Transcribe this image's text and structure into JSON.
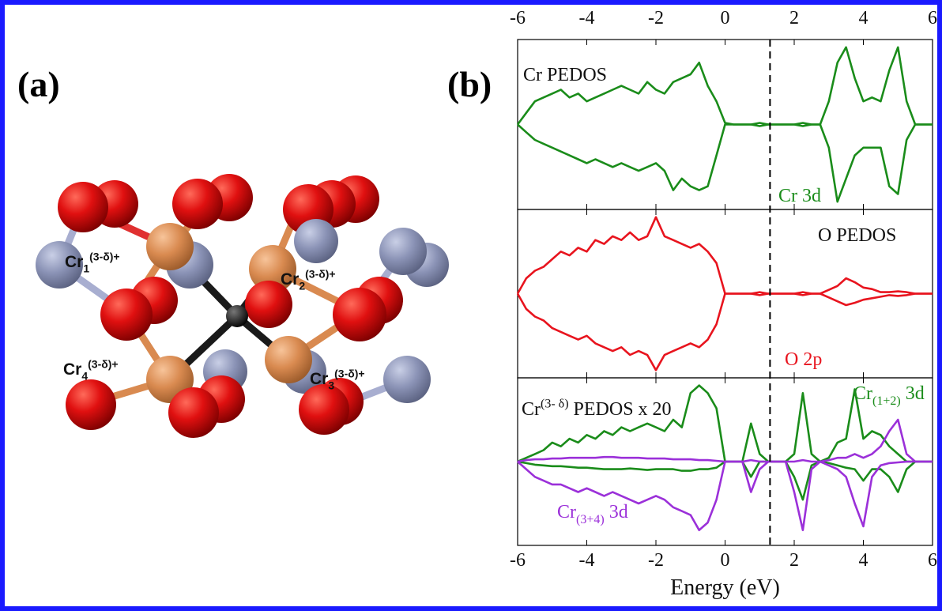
{
  "panel_a": {
    "label": "(a)",
    "atom_labels": [
      {
        "parts": [
          {
            "text": "Cr"
          },
          {
            "text": "1",
            "shift": "sub"
          },
          {
            "text": "(3-δ)+",
            "shift": "sup"
          }
        ]
      },
      {
        "parts": [
          {
            "text": "Cr"
          },
          {
            "text": "2",
            "shift": "sub"
          },
          {
            "text": "(3-δ)+",
            "shift": "sup"
          }
        ]
      },
      {
        "parts": [
          {
            "text": "Cr"
          },
          {
            "text": "4",
            "shift": "sub"
          },
          {
            "text": "(3-δ)+",
            "shift": "sup"
          }
        ]
      },
      {
        "parts": [
          {
            "text": "Cr"
          },
          {
            "text": "3",
            "shift": "sub"
          },
          {
            "text": "(3-δ)+",
            "shift": "sup"
          }
        ]
      }
    ]
  },
  "panel_b": {
    "label": "(b)"
  },
  "chart_data": [
    {
      "type": "line",
      "xlim": [
        -6,
        6
      ],
      "ylim": [
        -1.1,
        1.1
      ],
      "xticks": [
        -6,
        -4,
        -2,
        0,
        2,
        4,
        6
      ],
      "xticks_position": "top",
      "vline": 1.3,
      "annotations": [
        {
          "color": "#111111",
          "parts": [
            {
              "text": "Cr PEDOS"
            }
          ]
        },
        {
          "color": "#1a8c1a",
          "parts": [
            {
              "text": "Cr 3d"
            }
          ]
        }
      ],
      "x": [
        -6,
        -5.75,
        -5.5,
        -5.25,
        -5,
        -4.75,
        -4.5,
        -4.25,
        -4,
        -3.75,
        -3.5,
        -3.25,
        -3,
        -2.75,
        -2.5,
        -2.25,
        -2,
        -1.75,
        -1.5,
        -1.25,
        -1,
        -0.75,
        -0.5,
        -0.25,
        0,
        0.25,
        0.5,
        0.75,
        1,
        1.25,
        1.5,
        1.75,
        2,
        2.25,
        2.5,
        2.75,
        3,
        3.25,
        3.5,
        3.75,
        4,
        4.25,
        4.5,
        4.75,
        5,
        5.25,
        5.5,
        5.75,
        6
      ],
      "series": [
        {
          "color": "#1a8c1a",
          "values": [
            0,
            0.15,
            0.3,
            0.35,
            0.4,
            0.45,
            0.35,
            0.4,
            0.3,
            0.35,
            0.4,
            0.45,
            0.5,
            0.45,
            0.4,
            0.55,
            0.45,
            0.4,
            0.55,
            0.6,
            0.65,
            0.8,
            0.5,
            0.3,
            0.02,
            0,
            0,
            0,
            0.02,
            0,
            0,
            0,
            0,
            0.02,
            0,
            0,
            0.3,
            0.8,
            1.0,
            0.6,
            0.3,
            0.35,
            0.3,
            0.7,
            1.0,
            0.3,
            0,
            0,
            0
          ]
        },
        {
          "color": "#1a8c1a",
          "values": [
            0,
            -0.1,
            -0.2,
            -0.25,
            -0.3,
            -0.35,
            -0.4,
            -0.45,
            -0.5,
            -0.45,
            -0.5,
            -0.55,
            -0.5,
            -0.55,
            -0.6,
            -0.55,
            -0.5,
            -0.6,
            -0.85,
            -0.7,
            -0.8,
            -0.85,
            -0.8,
            -0.4,
            0,
            0,
            0,
            0,
            -0.02,
            0,
            0,
            0,
            0,
            -0.02,
            0,
            0,
            -0.3,
            -1.0,
            -0.7,
            -0.4,
            -0.3,
            -0.3,
            -0.3,
            -0.8,
            -0.9,
            -0.2,
            0,
            0,
            0
          ]
        }
      ]
    },
    {
      "type": "line",
      "xlim": [
        -6,
        6
      ],
      "ylim": [
        -1.1,
        1.1
      ],
      "annotations": [
        {
          "color": "#111111",
          "parts": [
            {
              "text": "O PEDOS"
            }
          ]
        },
        {
          "color": "#e8141e",
          "parts": [
            {
              "text": "O 2p"
            }
          ]
        }
      ],
      "x": [
        -6,
        -5.75,
        -5.5,
        -5.25,
        -5,
        -4.75,
        -4.5,
        -4.25,
        -4,
        -3.75,
        -3.5,
        -3.25,
        -3,
        -2.75,
        -2.5,
        -2.25,
        -2,
        -1.75,
        -1.5,
        -1.25,
        -1,
        -0.75,
        -0.5,
        -0.25,
        0,
        0.25,
        0.5,
        0.75,
        1,
        1.25,
        1.5,
        1.75,
        2,
        2.25,
        2.5,
        2.75,
        3,
        3.25,
        3.5,
        3.75,
        4,
        4.25,
        4.5,
        4.75,
        5,
        5.25,
        5.5,
        5.75,
        6
      ],
      "series": [
        {
          "color": "#e8141e",
          "values": [
            0,
            0.2,
            0.3,
            0.35,
            0.45,
            0.55,
            0.5,
            0.6,
            0.55,
            0.7,
            0.65,
            0.75,
            0.7,
            0.8,
            0.7,
            0.75,
            1.0,
            0.75,
            0.7,
            0.65,
            0.6,
            0.65,
            0.55,
            0.4,
            0,
            0,
            0,
            0,
            0.02,
            0,
            0,
            0,
            0,
            0.02,
            0,
            0,
            0.05,
            0.1,
            0.2,
            0.15,
            0.08,
            0.06,
            0.02,
            0.02,
            0.03,
            0.02,
            0,
            0,
            0
          ]
        },
        {
          "color": "#e8141e",
          "values": [
            0,
            -0.2,
            -0.3,
            -0.35,
            -0.45,
            -0.5,
            -0.55,
            -0.6,
            -0.55,
            -0.65,
            -0.7,
            -0.75,
            -0.7,
            -0.8,
            -0.75,
            -0.8,
            -1.0,
            -0.8,
            -0.75,
            -0.7,
            -0.65,
            -0.7,
            -0.6,
            -0.4,
            0,
            0,
            0,
            0,
            -0.02,
            0,
            0,
            0,
            0,
            -0.02,
            0,
            0,
            -0.05,
            -0.1,
            -0.15,
            -0.12,
            -0.08,
            -0.06,
            -0.04,
            -0.02,
            -0.03,
            -0.02,
            0,
            0,
            0
          ]
        }
      ]
    },
    {
      "type": "line",
      "xlim": [
        -6,
        6
      ],
      "ylim": [
        -1.1,
        1.1
      ],
      "xticks": [
        -6,
        -4,
        -2,
        0,
        2,
        4,
        6
      ],
      "xticks_position": "bottom",
      "xlabel": "Energy (eV)",
      "annotations": [
        {
          "color": "#111111",
          "parts": [
            {
              "text": "Cr"
            },
            {
              "text": "(3- δ)",
              "shift": "sup"
            },
            {
              "text": " PEDOS x 20"
            }
          ]
        },
        {
          "color": "#1a8c1a",
          "parts": [
            {
              "text": "Cr"
            },
            {
              "text": "(1+2)",
              "shift": "sub"
            },
            {
              "text": " 3d"
            }
          ]
        },
        {
          "color": "#9b30d9",
          "parts": [
            {
              "text": "Cr"
            },
            {
              "text": "(3+4)",
              "shift": "sub"
            },
            {
              "text": " 3d"
            }
          ]
        }
      ],
      "x": [
        -6,
        -5.75,
        -5.5,
        -5.25,
        -5,
        -4.75,
        -4.5,
        -4.25,
        -4,
        -3.75,
        -3.5,
        -3.25,
        -3,
        -2.75,
        -2.5,
        -2.25,
        -2,
        -1.75,
        -1.5,
        -1.25,
        -1,
        -0.75,
        -0.5,
        -0.25,
        0,
        0.25,
        0.5,
        0.75,
        1,
        1.25,
        1.5,
        1.75,
        2,
        2.25,
        2.5,
        2.75,
        3,
        3.25,
        3.5,
        3.75,
        4,
        4.25,
        4.5,
        4.75,
        5,
        5.25,
        5.5,
        5.75,
        6
      ],
      "series": [
        {
          "color": "#1a8c1a",
          "values": [
            0,
            0.05,
            0.1,
            0.15,
            0.25,
            0.2,
            0.3,
            0.25,
            0.35,
            0.3,
            0.4,
            0.35,
            0.45,
            0.4,
            0.45,
            0.5,
            0.45,
            0.4,
            0.55,
            0.45,
            0.9,
            1.0,
            0.9,
            0.7,
            0,
            0,
            0,
            0.5,
            0.1,
            0,
            0,
            0,
            0.1,
            0.9,
            0.1,
            0,
            0.05,
            0.25,
            0.3,
            0.95,
            0.3,
            0.4,
            0.35,
            0.2,
            0.1,
            0,
            0,
            0,
            0
          ]
        },
        {
          "color": "#1a8c1a",
          "values": [
            0,
            -0.02,
            -0.04,
            -0.05,
            -0.06,
            -0.06,
            -0.07,
            -0.08,
            -0.08,
            -0.09,
            -0.1,
            -0.1,
            -0.1,
            -0.09,
            -0.1,
            -0.11,
            -0.1,
            -0.1,
            -0.1,
            -0.12,
            -0.12,
            -0.1,
            -0.1,
            -0.08,
            0,
            0,
            0,
            -0.2,
            0,
            0,
            0,
            0,
            -0.2,
            -0.5,
            -0.05,
            0,
            -0.02,
            -0.05,
            -0.08,
            -0.1,
            -0.25,
            -0.1,
            -0.1,
            -0.2,
            -0.4,
            -0.1,
            0,
            0,
            0
          ]
        },
        {
          "color": "#9b30d9",
          "values": [
            0,
            0.02,
            0.03,
            0.03,
            0.04,
            0.04,
            0.05,
            0.05,
            0.05,
            0.05,
            0.06,
            0.06,
            0.05,
            0.05,
            0.05,
            0.04,
            0.04,
            0.04,
            0.03,
            0.03,
            0.03,
            0.02,
            0.02,
            0.01,
            0,
            0,
            0,
            0.02,
            0,
            0,
            0,
            0,
            0,
            0.02,
            0,
            0,
            0.02,
            0.05,
            0.05,
            0.1,
            0.05,
            0.1,
            0.2,
            0.4,
            0.55,
            0.1,
            0,
            0,
            0
          ]
        },
        {
          "color": "#9b30d9",
          "values": [
            0,
            -0.1,
            -0.2,
            -0.25,
            -0.3,
            -0.3,
            -0.35,
            -0.4,
            -0.35,
            -0.4,
            -0.45,
            -0.4,
            -0.45,
            -0.5,
            -0.55,
            -0.5,
            -0.45,
            -0.5,
            -0.6,
            -0.65,
            -0.7,
            -0.9,
            -0.8,
            -0.5,
            0,
            0,
            0,
            -0.4,
            -0.1,
            0,
            0,
            0,
            -0.4,
            -0.9,
            -0.1,
            0,
            -0.05,
            -0.1,
            -0.2,
            -0.55,
            -0.85,
            -0.2,
            -0.05,
            -0.02,
            -0.01,
            0,
            0,
            0,
            0
          ]
        }
      ]
    }
  ]
}
